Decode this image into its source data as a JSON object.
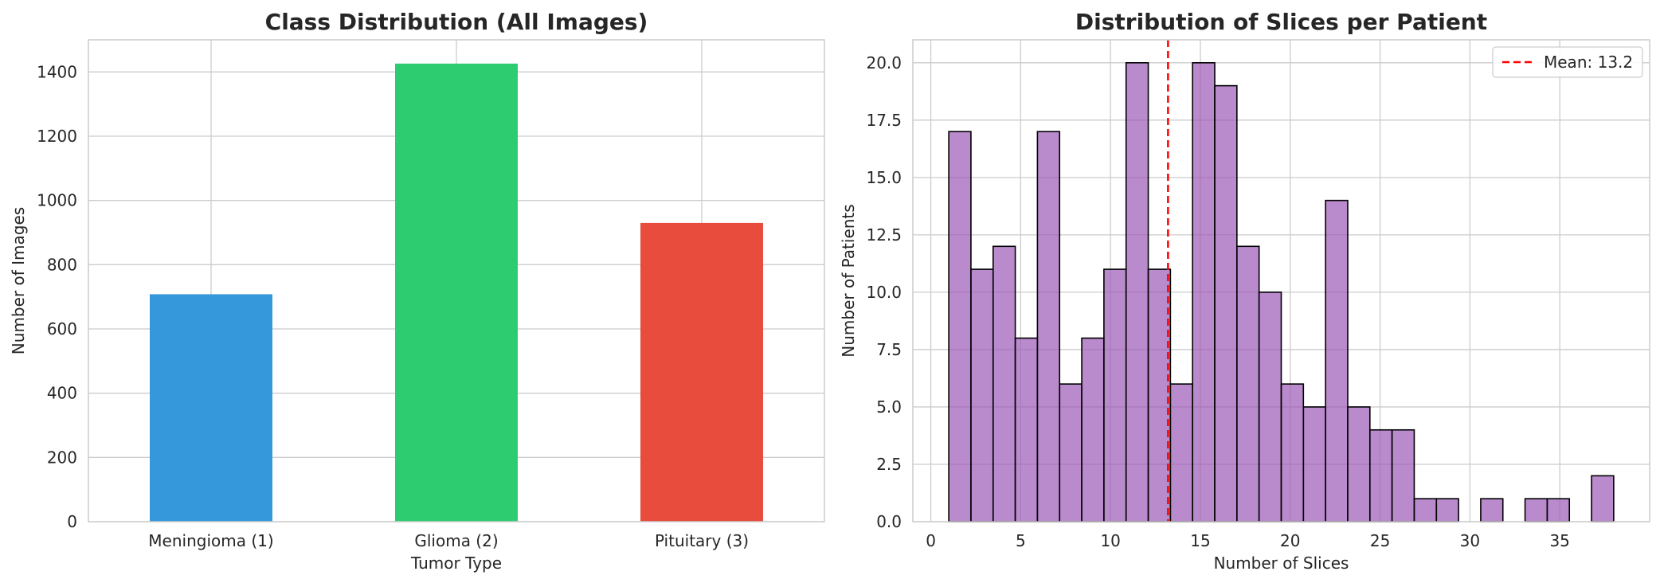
{
  "chart_data": [
    {
      "type": "bar",
      "title": "Class Distribution (All Images)",
      "xlabel": "Tumor Type",
      "ylabel": "Number of Images",
      "categories": [
        "Meningioma (1)",
        "Glioma (2)",
        "Pituitary (3)"
      ],
      "values": [
        708,
        1426,
        930
      ],
      "colors": [
        "#3498db",
        "#2ecc71",
        "#e74c3c"
      ],
      "ylim": [
        0,
        1500
      ],
      "yticks": [
        "0",
        "200",
        "400",
        "600",
        "800",
        "1000",
        "1200",
        "1400"
      ],
      "grid": true
    },
    {
      "type": "bar",
      "subtype": "histogram",
      "title": "Distribution of Slices per Patient",
      "xlabel": "Number of Slices",
      "ylabel": "Number of Patients",
      "bin_edges": [
        1,
        2.233,
        3.467,
        4.7,
        5.933,
        7.167,
        8.4,
        9.633,
        10.867,
        12.1,
        13.333,
        14.567,
        15.8,
        17.033,
        18.267,
        19.5,
        20.733,
        21.967,
        23.2,
        24.433,
        25.667,
        26.9,
        28.133,
        29.367,
        30.6,
        31.833,
        33.067,
        34.3,
        35.533,
        36.767,
        38
      ],
      "counts": [
        17,
        11,
        12,
        8,
        17,
        6,
        8,
        11,
        20,
        11,
        6,
        20,
        19,
        12,
        10,
        6,
        5,
        14,
        5,
        4,
        4,
        1,
        1,
        0,
        1,
        0,
        1,
        1,
        0,
        2
      ],
      "bar_color": "#9b59b6",
      "edge_color": "#000000",
      "xlim": [
        -1,
        40
      ],
      "xticks": [
        "0",
        "5",
        "10",
        "15",
        "20",
        "25",
        "30",
        "35"
      ],
      "ylim": [
        0,
        21
      ],
      "yticks": [
        "0.0",
        "2.5",
        "5.0",
        "7.5",
        "10.0",
        "12.5",
        "15.0",
        "17.5",
        "20.0"
      ],
      "mean_line": {
        "value": 13.2,
        "color": "#ff0000",
        "label": "Mean: 13.2"
      },
      "legend": {
        "placement": "top-right",
        "entries": [
          "Mean: 13.2"
        ]
      },
      "grid": true
    }
  ]
}
